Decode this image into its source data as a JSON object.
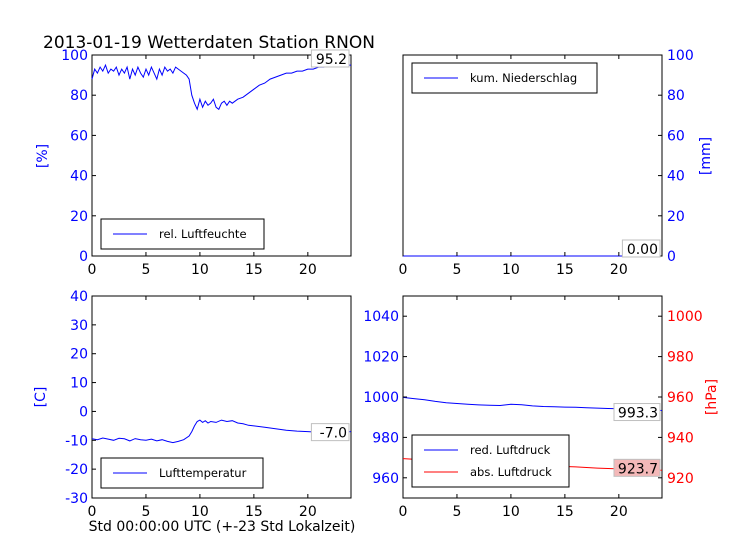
{
  "page": {
    "title": "2013-01-19 Wetterdaten Station RNON",
    "xlabel": "Std 00:00:00 UTC (+-23 Std Lokalzeit)"
  },
  "chart_data": [
    {
      "id": "humidity",
      "type": "line",
      "ylabel": "[%]",
      "xlim": [
        0,
        24
      ],
      "ylim": [
        0,
        100
      ],
      "xticks": [
        0,
        5,
        10,
        15,
        20
      ],
      "yticks": [
        0,
        20,
        40,
        60,
        80,
        100
      ],
      "ytick_color": "#0000ff",
      "legend_position": "lower-left",
      "series": [
        {
          "name": "rel. Luftfeuchte",
          "color": "#0000ff",
          "x": [
            0,
            0.25,
            0.5,
            0.75,
            1,
            1.25,
            1.5,
            1.75,
            2,
            2.25,
            2.5,
            2.75,
            3,
            3.25,
            3.5,
            3.75,
            4,
            4.25,
            4.5,
            4.75,
            5,
            5.25,
            5.5,
            5.75,
            6,
            6.25,
            6.5,
            6.75,
            7,
            7.25,
            7.5,
            7.75,
            8,
            8.25,
            8.5,
            8.75,
            9,
            9.25,
            9.5,
            9.75,
            10,
            10.25,
            10.5,
            10.75,
            11,
            11.25,
            11.5,
            11.75,
            12,
            12.25,
            12.5,
            12.75,
            13,
            13.5,
            14,
            14.5,
            15,
            15.5,
            16,
            16.5,
            17,
            17.5,
            18,
            18.5,
            19,
            19.5,
            20,
            20.5,
            21,
            21.5,
            22,
            22.5,
            23,
            23.5,
            24
          ],
          "y": [
            88,
            93,
            91,
            94,
            92,
            95,
            91,
            93,
            92,
            94,
            90,
            93,
            91,
            94,
            88,
            93,
            90,
            94,
            91,
            89,
            93,
            90,
            94,
            91,
            88,
            93,
            90,
            94,
            92,
            93,
            91,
            94,
            93,
            92,
            91,
            90,
            88,
            80,
            76,
            73,
            78,
            74,
            77,
            75,
            76,
            78,
            74,
            73,
            76,
            77,
            75,
            77,
            76,
            78,
            79,
            81,
            83,
            85,
            86,
            88,
            89,
            90,
            91,
            91,
            92,
            92,
            93,
            93,
            94,
            94,
            95,
            95,
            95,
            95,
            95
          ]
        }
      ],
      "annotation": "95.2"
    },
    {
      "id": "precip",
      "type": "line",
      "ylabel": "[mm]",
      "xlim": [
        0,
        24
      ],
      "ylim": [
        0,
        100
      ],
      "xticks": [
        0,
        5,
        10,
        15,
        20
      ],
      "yticks": [
        0,
        20,
        40,
        60,
        80,
        100
      ],
      "ytick_color": "#0000ff",
      "yaxis_side": "right",
      "legend_position": "top-left",
      "series": [
        {
          "name": "kum. Niederschlag",
          "color": "#0000ff",
          "x": [
            0,
            24
          ],
          "y": [
            0,
            0
          ]
        }
      ],
      "annotation": "0.00"
    },
    {
      "id": "temperature",
      "type": "line",
      "ylabel": "[C]",
      "xlim": [
        0,
        24
      ],
      "ylim": [
        -30,
        40
      ],
      "xticks": [
        0,
        5,
        10,
        15,
        20
      ],
      "yticks": [
        -30,
        -20,
        -10,
        0,
        10,
        20,
        30,
        40
      ],
      "ytick_color": "#0000ff",
      "legend_position": "lower-left",
      "series": [
        {
          "name": "Lufttemperatur",
          "color": "#0000ff",
          "x": [
            0,
            0.5,
            1,
            1.5,
            2,
            2.5,
            3,
            3.5,
            4,
            4.5,
            5,
            5.5,
            6,
            6.5,
            7,
            7.5,
            8,
            8.5,
            9,
            9.25,
            9.5,
            9.75,
            10,
            10.25,
            10.5,
            10.75,
            11,
            11.5,
            12,
            12.5,
            13,
            13.5,
            14,
            14.5,
            15,
            16,
            17,
            18,
            19,
            20,
            21,
            22,
            23,
            24
          ],
          "y": [
            -9.5,
            -9.8,
            -9.2,
            -9.6,
            -10,
            -9.3,
            -9.5,
            -10.2,
            -9.4,
            -9.8,
            -10,
            -9.6,
            -10.2,
            -9.8,
            -10.4,
            -10.8,
            -10.4,
            -9.8,
            -8.5,
            -7,
            -5,
            -3.5,
            -3,
            -3.8,
            -3.2,
            -4,
            -3.5,
            -3.8,
            -3,
            -3.5,
            -3.2,
            -4,
            -4.3,
            -4.8,
            -5,
            -5.5,
            -6,
            -6.5,
            -6.8,
            -7,
            -7.2,
            -7.3,
            -7.2,
            -7
          ]
        }
      ],
      "annotation": "-7.0"
    },
    {
      "id": "pressure",
      "type": "line",
      "xlim": [
        0,
        24
      ],
      "ylim_left": [
        950,
        1050
      ],
      "ylim_right": [
        910,
        1010
      ],
      "xticks": [
        0,
        5,
        10,
        15,
        20
      ],
      "yticks_left": [
        960,
        980,
        1000,
        1020,
        1040
      ],
      "yticks_right": [
        920,
        940,
        960,
        980,
        1000
      ],
      "ylabel_right": "[hPa]",
      "ytick_color_left": "#0000ff",
      "ytick_color_right": "#ff0000",
      "legend_position": "lower-left",
      "series": [
        {
          "name": "red. Luftdruck",
          "color": "#0000ff",
          "axis": "left",
          "x": [
            0,
            1,
            2,
            3,
            4,
            5,
            6,
            7,
            8,
            9,
            10,
            11,
            12,
            13,
            14,
            15,
            16,
            17,
            18,
            19,
            20,
            21,
            22,
            23,
            24
          ],
          "y": [
            999.8,
            999.2,
            998.6,
            997.8,
            997.2,
            996.8,
            996.4,
            996.1,
            995.9,
            995.8,
            996.4,
            996.2,
            995.6,
            995.3,
            995.2,
            995,
            994.9,
            994.7,
            994.5,
            994.3,
            994.2,
            994,
            993.8,
            993.6,
            993.3
          ]
        },
        {
          "name": "abs. Luftdruck",
          "color": "#ff0000",
          "axis": "right",
          "x": [
            0,
            1,
            2,
            3,
            4,
            5,
            6,
            7,
            8,
            9,
            10,
            11,
            12,
            13,
            14,
            15,
            16,
            17,
            18,
            19,
            20,
            21,
            22,
            23,
            24
          ],
          "y": [
            929.5,
            929.2,
            928.6,
            928,
            927.2,
            926.6,
            926.2,
            925.9,
            925.5,
            925.6,
            927.4,
            927,
            926.5,
            926.1,
            925.9,
            925.6,
            925.4,
            925.1,
            924.8,
            924.6,
            924.4,
            924.2,
            924,
            923.9,
            923.7
          ]
        }
      ],
      "annotations": [
        "993.3",
        "923.7"
      ]
    }
  ]
}
